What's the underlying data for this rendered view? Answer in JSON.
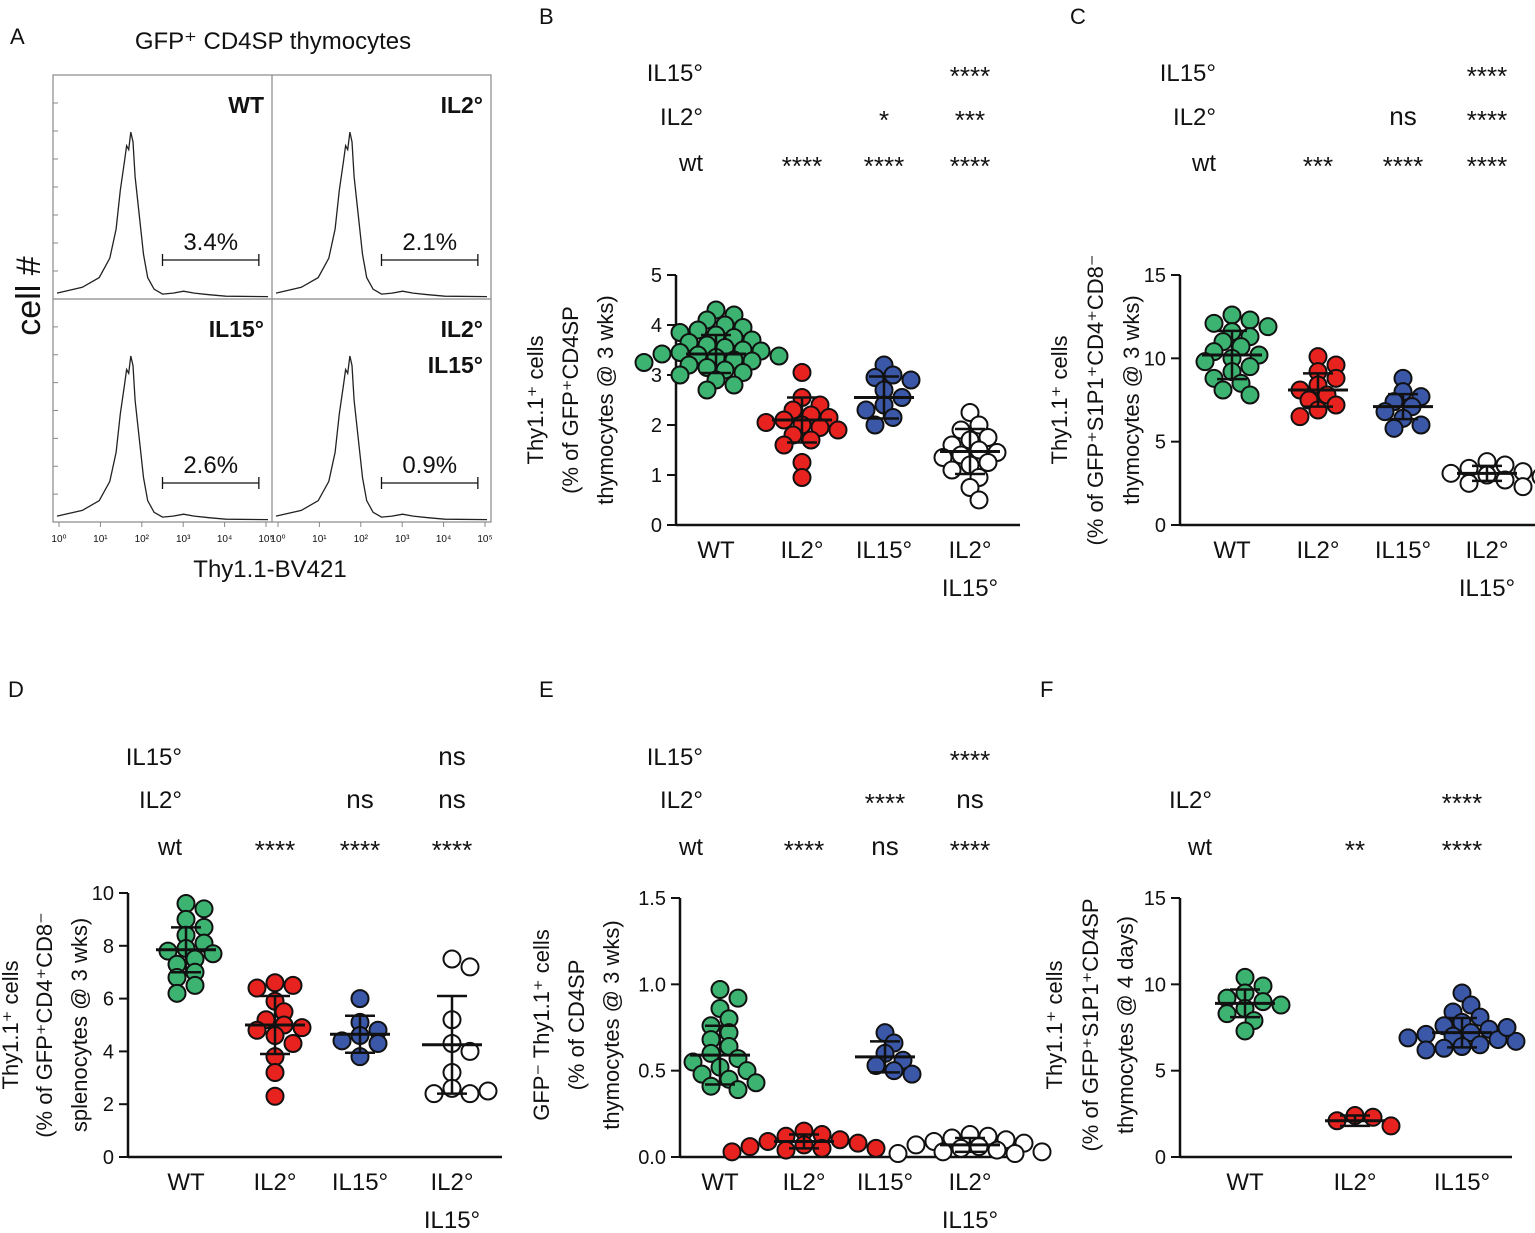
{
  "panelA": {
    "letter": "A",
    "title": "GFP⁺ CD4SP thymocytes",
    "ylabel": "cell #",
    "xlabel": "Thy1.1-BV421",
    "x_ticks": [
      "10⁰",
      "10¹",
      "10²",
      "10³",
      "10⁴",
      "10⁵"
    ],
    "quadrants": [
      {
        "label": "WT",
        "label2": "",
        "percent": "3.4%"
      },
      {
        "label": "IL2°",
        "label2": "",
        "percent": "2.1%"
      },
      {
        "label": "IL15°",
        "label2": "",
        "percent": "2.6%"
      },
      {
        "label": "IL2°",
        "label2": "IL15°",
        "percent": "0.9%"
      }
    ]
  },
  "colors": {
    "WT": "#3cb371",
    "IL2": "#e8231f",
    "IL15": "#3a57a8",
    "DKO": "#ffffff",
    "stroke": "#111111"
  },
  "chart_data": [
    {
      "panel": "B",
      "type": "scatter",
      "ylabel_lines": [
        "Thy1.1⁺ cells",
        "(% of GFP⁺CD4SP",
        "thymocytes @ 3 wks)"
      ],
      "ylim": [
        0,
        5
      ],
      "yticks": [
        0,
        1,
        2,
        3,
        4,
        5
      ],
      "ytick_labels": [
        "0",
        "1",
        "2",
        "3",
        "4",
        "5"
      ],
      "groups": [
        {
          "name": "WT",
          "label2": "",
          "color": "WT",
          "mean": 3.42,
          "sd": 0.38,
          "values": [
            4.3,
            4.2,
            4.1,
            4.0,
            3.95,
            3.9,
            3.85,
            3.8,
            3.75,
            3.7,
            3.65,
            3.6,
            3.55,
            3.5,
            3.48,
            3.45,
            3.42,
            3.4,
            3.38,
            3.35,
            3.3,
            3.28,
            3.25,
            3.2,
            3.15,
            3.1,
            3.05,
            3.0,
            2.9,
            2.8,
            2.7
          ]
        },
        {
          "name": "IL2°",
          "label2": "",
          "color": "IL2",
          "mean": 2.1,
          "sd": 0.45,
          "values": [
            3.05,
            2.55,
            2.4,
            2.3,
            2.2,
            2.15,
            2.1,
            2.05,
            2.0,
            1.95,
            1.9,
            1.8,
            1.7,
            1.6,
            1.25,
            0.95
          ]
        },
        {
          "name": "IL15°",
          "label2": "",
          "color": "IL15",
          "mean": 2.55,
          "sd": 0.42,
          "values": [
            3.2,
            3.0,
            2.95,
            2.9,
            2.7,
            2.55,
            2.4,
            2.3,
            2.15,
            2.0
          ]
        },
        {
          "name": "IL2°",
          "label2": "IL15°",
          "color": "DKO",
          "mean": 1.47,
          "sd": 0.45,
          "values": [
            2.25,
            2.0,
            1.9,
            1.75,
            1.7,
            1.6,
            1.5,
            1.45,
            1.4,
            1.35,
            1.25,
            1.2,
            1.1,
            0.95,
            0.75,
            0.5
          ]
        }
      ],
      "sig_rows": [
        {
          "label": "IL15°",
          "marks": [
            "",
            "",
            "",
            "****"
          ]
        },
        {
          "label": "IL2°",
          "marks": [
            "",
            "",
            "*",
            "***"
          ]
        },
        {
          "label": "wt",
          "marks": [
            "",
            "****",
            "****",
            "****"
          ]
        }
      ]
    },
    {
      "panel": "C",
      "type": "scatter",
      "ylabel_lines": [
        "Thy1.1⁺ cells",
        "(% of GFP⁺S1P1⁺CD4⁺CD8⁻",
        "thymocytes @ 3 wks)"
      ],
      "ylim": [
        0,
        15
      ],
      "yticks": [
        0,
        5,
        10,
        15
      ],
      "ytick_labels": [
        "0",
        "5",
        "10",
        "15"
      ],
      "groups": [
        {
          "name": "WT",
          "label2": "",
          "color": "WT",
          "mean": 10.2,
          "sd": 1.45,
          "values": [
            12.6,
            12.3,
            12.1,
            11.9,
            11.6,
            11.3,
            11.0,
            10.7,
            10.4,
            10.2,
            10.0,
            9.8,
            9.5,
            9.2,
            8.8,
            8.5,
            8.1,
            7.8
          ]
        },
        {
          "name": "IL2°",
          "label2": "",
          "color": "IL2",
          "mean": 8.1,
          "sd": 1.0,
          "values": [
            10.1,
            9.6,
            9.2,
            8.8,
            8.4,
            8.1,
            7.8,
            7.5,
            7.2,
            6.9,
            6.5
          ]
        },
        {
          "name": "IL15°",
          "label2": "",
          "color": "IL15",
          "mean": 7.1,
          "sd": 0.75,
          "values": [
            8.8,
            8.0,
            7.7,
            7.4,
            7.1,
            6.8,
            6.4,
            6.0,
            5.8
          ]
        },
        {
          "name": "IL2°",
          "label2": "IL15°",
          "color": "DKO",
          "mean": 3.1,
          "sd": 0.45,
          "values": [
            3.8,
            3.6,
            3.4,
            3.2,
            3.1,
            3.0,
            2.9,
            2.7,
            2.5,
            2.3
          ]
        }
      ],
      "sig_rows": [
        {
          "label": "IL15°",
          "marks": [
            "",
            "",
            "",
            "****"
          ]
        },
        {
          "label": "IL2°",
          "marks": [
            "",
            "",
            "ns",
            "****"
          ]
        },
        {
          "label": "wt",
          "marks": [
            "",
            "***",
            "****",
            "****"
          ]
        }
      ]
    },
    {
      "panel": "D",
      "type": "scatter",
      "ylabel_lines": [
        "Thy1.1⁺ cells",
        "(% of GFP⁺CD4⁺CD8⁻",
        "splenocytes @ 3 wks)"
      ],
      "ylim": [
        0,
        10
      ],
      "yticks": [
        0,
        2,
        4,
        6,
        8,
        10
      ],
      "ytick_labels": [
        "0",
        "2",
        "4",
        "6",
        "8",
        "10"
      ],
      "groups": [
        {
          "name": "WT",
          "label2": "",
          "color": "WT",
          "mean": 7.85,
          "sd": 0.85,
          "values": [
            9.6,
            9.4,
            9.0,
            8.7,
            8.4,
            8.1,
            7.9,
            7.8,
            7.7,
            7.5,
            7.3,
            7.0,
            6.8,
            6.5,
            6.2
          ]
        },
        {
          "name": "IL2°",
          "label2": "",
          "color": "IL2",
          "mean": 5.0,
          "sd": 1.1,
          "values": [
            6.6,
            6.5,
            6.4,
            5.9,
            5.5,
            5.2,
            5.0,
            4.9,
            4.8,
            4.6,
            4.3,
            3.8,
            3.2,
            2.3
          ]
        },
        {
          "name": "IL15°",
          "label2": "",
          "color": "IL15",
          "mean": 4.65,
          "sd": 0.7,
          "values": [
            6.0,
            5.1,
            4.8,
            4.6,
            4.4,
            4.3,
            3.8
          ]
        },
        {
          "name": "IL2°",
          "label2": "IL15°",
          "color": "DKO",
          "mean": 4.25,
          "sd": 1.85,
          "values": [
            7.5,
            7.2,
            5.2,
            4.3,
            4.0,
            3.2,
            2.6,
            2.4,
            2.4,
            2.5
          ]
        }
      ],
      "sig_rows": [
        {
          "label": "IL15°",
          "marks": [
            "",
            "",
            "",
            "ns"
          ]
        },
        {
          "label": "IL2°",
          "marks": [
            "",
            "",
            "ns",
            "ns"
          ]
        },
        {
          "label": "wt",
          "marks": [
            "",
            "****",
            "****",
            "****"
          ]
        }
      ]
    },
    {
      "panel": "E",
      "type": "scatter",
      "ylabel_lines": [
        "GFP⁻ Thy1.1⁺ cells",
        "(% of CD4SP",
        "thymocytes @ 3 wks)"
      ],
      "ylim": [
        0,
        1.5
      ],
      "yticks": [
        0,
        0.5,
        1.0,
        1.5
      ],
      "ytick_labels": [
        "0.0",
        "0.5",
        "1.0",
        "1.5"
      ],
      "groups": [
        {
          "name": "WT",
          "label2": "",
          "color": "WT",
          "mean": 0.59,
          "sd": 0.17,
          "values": [
            0.97,
            0.92,
            0.86,
            0.8,
            0.76,
            0.72,
            0.68,
            0.64,
            0.6,
            0.57,
            0.55,
            0.52,
            0.5,
            0.48,
            0.45,
            0.43,
            0.41,
            0.39
          ]
        },
        {
          "name": "IL2°",
          "label2": "",
          "color": "IL2",
          "mean": 0.09,
          "sd": 0.04,
          "values": [
            0.15,
            0.13,
            0.12,
            0.1,
            0.09,
            0.08,
            0.07,
            0.06,
            0.05,
            0.05,
            0.04,
            0.03
          ]
        },
        {
          "name": "IL15°",
          "label2": "",
          "color": "IL15",
          "mean": 0.58,
          "sd": 0.09,
          "values": [
            0.72,
            0.66,
            0.6,
            0.56,
            0.53,
            0.5,
            0.48
          ]
        },
        {
          "name": "IL2°",
          "label2": "IL15°",
          "color": "DKO",
          "mean": 0.07,
          "sd": 0.04,
          "values": [
            0.13,
            0.12,
            0.11,
            0.1,
            0.09,
            0.08,
            0.07,
            0.06,
            0.05,
            0.04,
            0.03,
            0.03,
            0.02,
            0.02
          ]
        }
      ],
      "sig_rows": [
        {
          "label": "IL15°",
          "marks": [
            "",
            "",
            "",
            "****"
          ]
        },
        {
          "label": "IL2°",
          "marks": [
            "",
            "",
            "****",
            "ns"
          ]
        },
        {
          "label": "wt",
          "marks": [
            "",
            "****",
            "ns",
            "****"
          ]
        }
      ]
    },
    {
      "panel": "F",
      "type": "scatter",
      "ylabel_lines": [
        "Thy1.1⁺ cells",
        "(% of GFP⁺S1P1⁺CD4SP",
        "thymocytes @ 4 days)"
      ],
      "ylim": [
        0,
        15
      ],
      "yticks": [
        0,
        5,
        10,
        15
      ],
      "ytick_labels": [
        "0",
        "5",
        "10",
        "15"
      ],
      "groups": [
        {
          "name": "WT",
          "label2": "",
          "color": "WT",
          "mean": 8.9,
          "sd": 0.8,
          "values": [
            10.4,
            9.9,
            9.5,
            9.2,
            9.0,
            8.8,
            8.6,
            8.3,
            7.9,
            7.3
          ]
        },
        {
          "name": "IL2°",
          "label2": "",
          "color": "IL2",
          "mean": 2.1,
          "sd": 0.3,
          "values": [
            2.4,
            2.3,
            2.1,
            1.8
          ]
        },
        {
          "name": "IL15°",
          "label2": "",
          "color": "IL15",
          "mean": 7.2,
          "sd": 0.85,
          "values": [
            9.5,
            8.8,
            8.4,
            8.1,
            7.8,
            7.6,
            7.4,
            7.2,
            7.1,
            7.0,
            6.8,
            6.7,
            6.5,
            6.4,
            6.3,
            6.2,
            7.5,
            6.9
          ]
        }
      ],
      "sig_rows": [
        {
          "label": "IL2°",
          "marks": [
            "",
            "",
            "****"
          ]
        },
        {
          "label": "wt",
          "marks": [
            "",
            "**",
            "****"
          ]
        }
      ]
    }
  ]
}
